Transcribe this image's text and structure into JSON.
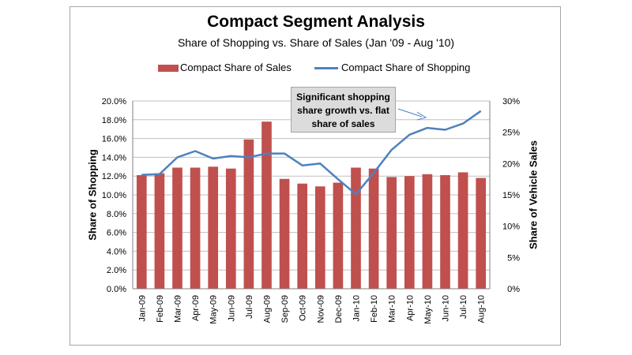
{
  "chart_data": {
    "type": "bar",
    "title": "Compact Segment Analysis",
    "subtitle": "Share of Shopping  vs. Share of Sales (Jan '09 - Aug '10)",
    "categories": [
      "Jan-09",
      "Feb-09",
      "Mar-09",
      "Apr-09",
      "May-09",
      "Jun-09",
      "Jul-09",
      "Aug-09",
      "Sep-09",
      "Oct-09",
      "Nov-09",
      "Dec-09",
      "Jan-10",
      "Feb-10",
      "Mar-10",
      "Apr-10",
      "May-10",
      "Jun-10",
      "Jul-10",
      "Aug-10"
    ],
    "series": [
      {
        "name": "Compact Share of Sales",
        "type": "bar",
        "axis": "left",
        "color": "#c0504d",
        "values": [
          12.1,
          12.3,
          12.9,
          12.9,
          13.0,
          12.8,
          15.9,
          17.8,
          11.7,
          11.2,
          10.9,
          11.3,
          12.9,
          12.8,
          11.9,
          12.0,
          12.2,
          12.1,
          12.4,
          11.8
        ]
      },
      {
        "name": "Compact Share of Shopping",
        "type": "line",
        "axis": "right",
        "color": "#4f81bd",
        "values": [
          18.2,
          18.3,
          21.0,
          22.0,
          20.8,
          21.2,
          21.0,
          21.6,
          21.6,
          19.7,
          20.0,
          17.5,
          15.1,
          18.5,
          22.2,
          24.6,
          25.7,
          25.4,
          26.4,
          28.4
        ]
      }
    ],
    "ylabel": "Share of Shopping",
    "ylabel_right": "Share of Vehicle Sales",
    "ylim": [
      0,
      20
    ],
    "ylim_right": [
      0,
      30
    ],
    "yticks": [
      "0.0%",
      "2.0%",
      "4.0%",
      "6.0%",
      "8.0%",
      "10.0%",
      "12.0%",
      "14.0%",
      "16.0%",
      "18.0%",
      "20.0%"
    ],
    "yticks_right": [
      "0%",
      "5%",
      "10%",
      "15%",
      "20%",
      "25%",
      "30%"
    ],
    "grid": true,
    "legend_position": "top",
    "annotation": [
      "Significant  shopping",
      "share growth vs. flat",
      "share of sales"
    ]
  }
}
